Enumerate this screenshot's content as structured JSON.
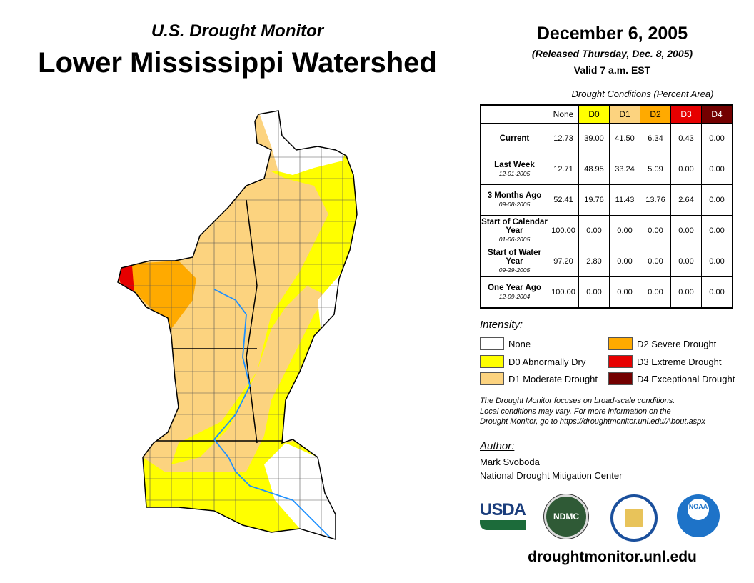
{
  "header": {
    "subtitle": "U.S. Drought Monitor",
    "title": "Lower Mississippi Watershed",
    "date": "December 6, 2005",
    "released": "(Released Thursday, Dec. 8, 2005)",
    "valid": "Valid 7 a.m. EST"
  },
  "table": {
    "caption": "Drought Conditions (Percent Area)",
    "columns": [
      "None",
      "D0",
      "D1",
      "D2",
      "D3",
      "D4"
    ],
    "rows": [
      {
        "label": "Current",
        "date": "",
        "values": [
          "12.73",
          "39.00",
          "41.50",
          "6.34",
          "0.43",
          "0.00"
        ]
      },
      {
        "label": "Last Week",
        "date": "12-01-2005",
        "values": [
          "12.71",
          "48.95",
          "33.24",
          "5.09",
          "0.00",
          "0.00"
        ]
      },
      {
        "label": "3 Months Ago",
        "date": "09-08-2005",
        "values": [
          "52.41",
          "19.76",
          "11.43",
          "13.76",
          "2.64",
          "0.00"
        ]
      },
      {
        "label": "Start of Calendar Year",
        "date": "01-06-2005",
        "values": [
          "100.00",
          "0.00",
          "0.00",
          "0.00",
          "0.00",
          "0.00"
        ]
      },
      {
        "label": "Start of Water Year",
        "date": "09-29-2005",
        "values": [
          "97.20",
          "2.80",
          "0.00",
          "0.00",
          "0.00",
          "0.00"
        ]
      },
      {
        "label": "One Year Ago",
        "date": "12-09-2004",
        "values": [
          "100.00",
          "0.00",
          "0.00",
          "0.00",
          "0.00",
          "0.00"
        ]
      }
    ]
  },
  "legend": {
    "heading": "Intensity:",
    "items": [
      {
        "label": "None",
        "color": "#ffffff"
      },
      {
        "label": "D0 Abnormally Dry",
        "color": "#ffff00"
      },
      {
        "label": "D1 Moderate Drought",
        "color": "#fcd37f"
      },
      {
        "label": "D2 Severe Drought",
        "color": "#ffaa00"
      },
      {
        "label": "D3 Extreme Drought",
        "color": "#e60000"
      },
      {
        "label": "D4 Exceptional Drought",
        "color": "#730000"
      }
    ]
  },
  "note": [
    "The Drought Monitor focuses on broad-scale conditions.",
    "Local conditions may vary. For more information on the",
    "Drought Monitor, go to https://droughtmonitor.unl.edu/About.aspx"
  ],
  "author": {
    "heading": "Author:",
    "name": "Mark Svoboda",
    "org": "National Drought Mitigation Center"
  },
  "logos": {
    "usda": "USDA",
    "ndmc": "NDMC",
    "noaa": "NOAA"
  },
  "footer": {
    "url": "droughtmonitor.unl.edu"
  }
}
